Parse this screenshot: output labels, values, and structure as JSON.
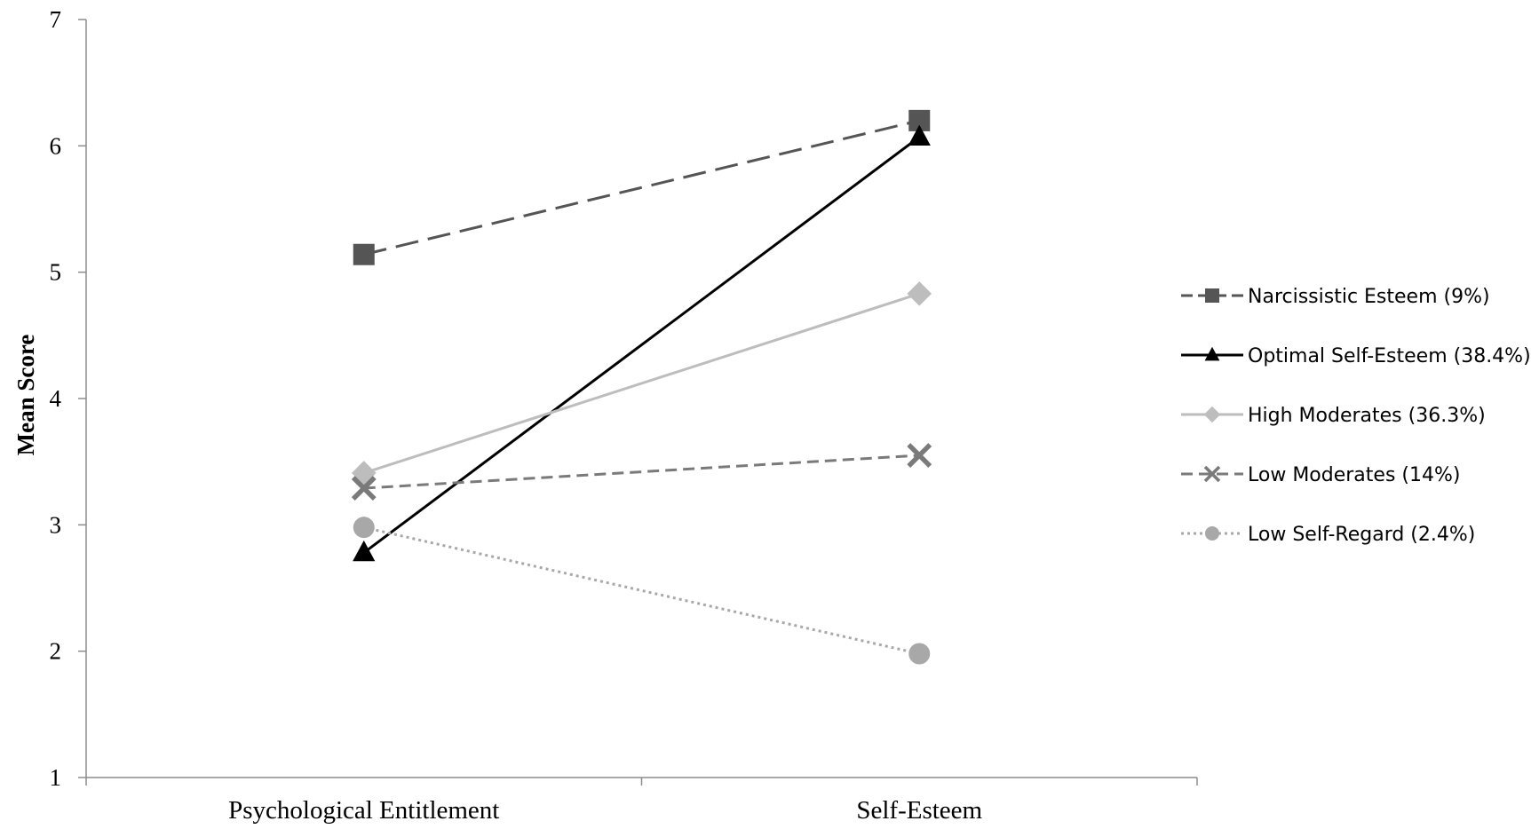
{
  "chart_data": {
    "type": "line",
    "categories": [
      "Psychological Entitlement",
      "Self-Esteem"
    ],
    "ylabel": "Mean Score",
    "xlabel": "",
    "ylim": [
      1,
      7
    ],
    "yticks": [
      "1",
      "2",
      "3",
      "4",
      "5",
      "6",
      "7"
    ],
    "grid": false,
    "legend_position": "right",
    "series": [
      {
        "name": "Narcissistic Esteem (9%)",
        "values": [
          5.14,
          6.2
        ],
        "color": "#555555",
        "dash": "long-dash",
        "marker": "square"
      },
      {
        "name": "Optimal Self-Esteem (38.4%)",
        "values": [
          2.78,
          6.07
        ],
        "color": "#000000",
        "dash": "solid",
        "marker": "triangle"
      },
      {
        "name": "High Moderates (36.3%)",
        "values": [
          3.41,
          4.83
        ],
        "color": "#bdbdbd",
        "dash": "solid",
        "marker": "diamond"
      },
      {
        "name": "Low Moderates (14%)",
        "values": [
          3.29,
          3.55
        ],
        "color": "#7a7a7a",
        "dash": "short-dash",
        "marker": "x"
      },
      {
        "name": "Low Self-Regard (2.4%)",
        "values": [
          2.98,
          1.98
        ],
        "color": "#a8a8a8",
        "dash": "dotted",
        "marker": "circle"
      }
    ]
  }
}
